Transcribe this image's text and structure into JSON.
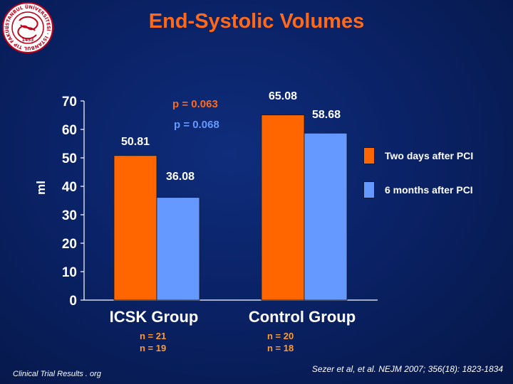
{
  "page": {
    "title": "End-Systolic Volumes",
    "footer_left": "Clinical Trial Results . org",
    "citation": "Sezer et al, et al. NEJM 2007; 356(18): 1823-1834",
    "logo": {
      "ring_text": "İSTANBUL ÜNİVERSİTESİ · İSTANBUL TIP FAKÜLTESİ",
      "year": "1453"
    }
  },
  "groups": [
    {
      "name": "ICSK Group",
      "n_line1": "n = 21",
      "n_line2": "n = 19"
    },
    {
      "name": "Control Group",
      "n_line1": "n = 20",
      "n_line2": "n = 18"
    }
  ],
  "legend": [
    {
      "label": "Two days after PCI",
      "color": "#ff6600"
    },
    {
      "label": "6 months after PCI",
      "color": "#6699ff"
    }
  ],
  "chart_data": {
    "type": "bar",
    "title": "End-Systolic Volumes",
    "xlabel": "",
    "ylabel": "ml",
    "categories": [
      "ICSK Group",
      "Control Group"
    ],
    "series": [
      {
        "name": "Two days after PCI",
        "values": [
          50.81,
          65.08
        ],
        "labels": [
          "50.81",
          "65.08"
        ],
        "color": "#ff6600"
      },
      {
        "name": "6 months after PCI",
        "values": [
          36.08,
          58.68
        ],
        "labels": [
          "36.08",
          "58.68"
        ],
        "color": "#6699ff"
      }
    ],
    "ylim": [
      0,
      70
    ],
    "yticks": [
      0,
      10,
      20,
      30,
      40,
      50,
      60,
      70
    ],
    "ytick_labels": [
      "0",
      "10",
      "20",
      "30",
      "40",
      "50",
      "60",
      "70"
    ],
    "annotations": [
      "p = 0.063",
      "p = 0.068"
    ],
    "legend_position": "right",
    "grid": false
  }
}
